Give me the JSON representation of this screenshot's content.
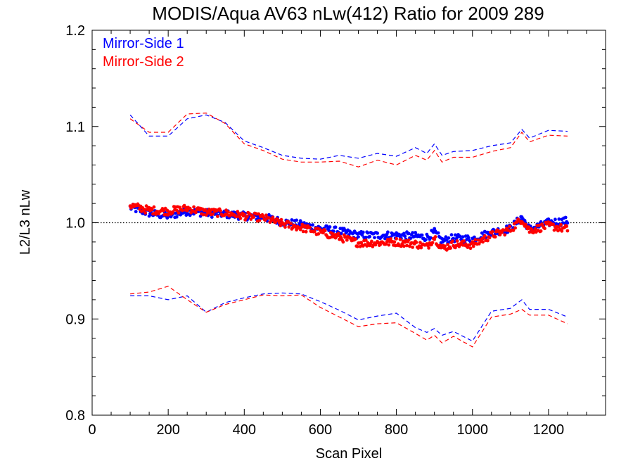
{
  "chart_data": {
    "type": "scatter",
    "title": "MODIS/Aqua AV63 nLw(412) Ratio for 2009 289",
    "xlabel": "Scan Pixel",
    "ylabel": "L2/L3 nLw",
    "xlim": [
      0,
      1350
    ],
    "ylim": [
      0.8,
      1.2
    ],
    "xticks": [
      0,
      200,
      400,
      600,
      800,
      1000,
      1200
    ],
    "xtick_labels": [
      "0",
      "200",
      "400",
      "600",
      "800",
      "1000",
      "1200"
    ],
    "yticks": [
      0.8,
      0.9,
      1.0,
      1.1,
      1.2
    ],
    "ytick_labels": [
      "0.8",
      "0.9",
      "1.0",
      "1.1",
      "1.2"
    ],
    "reference_line": {
      "y": 1.0,
      "style": "dotted"
    },
    "legend_placement": "top-left",
    "colors": {
      "ms1": "#0000ff",
      "ms2": "#ff0000",
      "axes": "#000000"
    },
    "series": [
      {
        "name": "Mirror-Side 1",
        "color": "#0000ff",
        "x": [
          100,
          150,
          200,
          250,
          300,
          350,
          400,
          450,
          500,
          550,
          600,
          650,
          700,
          750,
          800,
          850,
          880,
          900,
          920,
          950,
          1000,
          1050,
          1100,
          1130,
          1150,
          1200,
          1250
        ],
        "mean": [
          1.016,
          1.01,
          1.007,
          1.012,
          1.01,
          1.009,
          1.007,
          1.006,
          1.001,
          0.998,
          0.994,
          0.991,
          0.987,
          0.987,
          0.987,
          0.986,
          0.985,
          0.99,
          0.981,
          0.984,
          0.983,
          0.99,
          0.994,
          1.006,
          0.993,
          1.0,
          1.002
        ],
        "upper": [
          1.112,
          1.09,
          1.09,
          1.108,
          1.112,
          1.104,
          1.085,
          1.078,
          1.07,
          1.067,
          1.066,
          1.07,
          1.067,
          1.072,
          1.069,
          1.078,
          1.072,
          1.082,
          1.07,
          1.074,
          1.075,
          1.08,
          1.083,
          1.097,
          1.088,
          1.096,
          1.095
        ],
        "lower": [
          0.924,
          0.924,
          0.92,
          0.924,
          0.907,
          0.917,
          0.922,
          0.926,
          0.927,
          0.926,
          0.918,
          0.909,
          0.899,
          0.903,
          0.906,
          0.891,
          0.886,
          0.89,
          0.883,
          0.887,
          0.877,
          0.908,
          0.911,
          0.92,
          0.91,
          0.91,
          0.902
        ]
      },
      {
        "name": "Mirror-Side 2",
        "color": "#ff0000",
        "x": [
          100,
          150,
          200,
          250,
          300,
          350,
          400,
          450,
          500,
          550,
          600,
          650,
          700,
          750,
          800,
          850,
          880,
          900,
          920,
          950,
          1000,
          1050,
          1100,
          1130,
          1150,
          1200,
          1250
        ],
        "mean": [
          1.018,
          1.013,
          1.012,
          1.015,
          1.011,
          1.01,
          1.007,
          1.005,
          0.999,
          0.995,
          0.99,
          0.985,
          0.979,
          0.979,
          0.98,
          0.978,
          0.975,
          0.985,
          0.973,
          0.978,
          0.977,
          0.987,
          0.993,
          1.004,
          0.992,
          0.997,
          0.993
        ],
        "upper": [
          1.108,
          1.094,
          1.094,
          1.113,
          1.114,
          1.103,
          1.082,
          1.075,
          1.066,
          1.063,
          1.063,
          1.064,
          1.058,
          1.065,
          1.06,
          1.07,
          1.065,
          1.075,
          1.063,
          1.068,
          1.068,
          1.074,
          1.078,
          1.094,
          1.084,
          1.091,
          1.09
        ],
        "lower": [
          0.926,
          0.928,
          0.934,
          0.92,
          0.907,
          0.915,
          0.92,
          0.925,
          0.924,
          0.925,
          0.912,
          0.902,
          0.892,
          0.895,
          0.896,
          0.885,
          0.878,
          0.883,
          0.875,
          0.882,
          0.871,
          0.902,
          0.905,
          0.91,
          0.904,
          0.904,
          0.895
        ]
      }
    ]
  }
}
